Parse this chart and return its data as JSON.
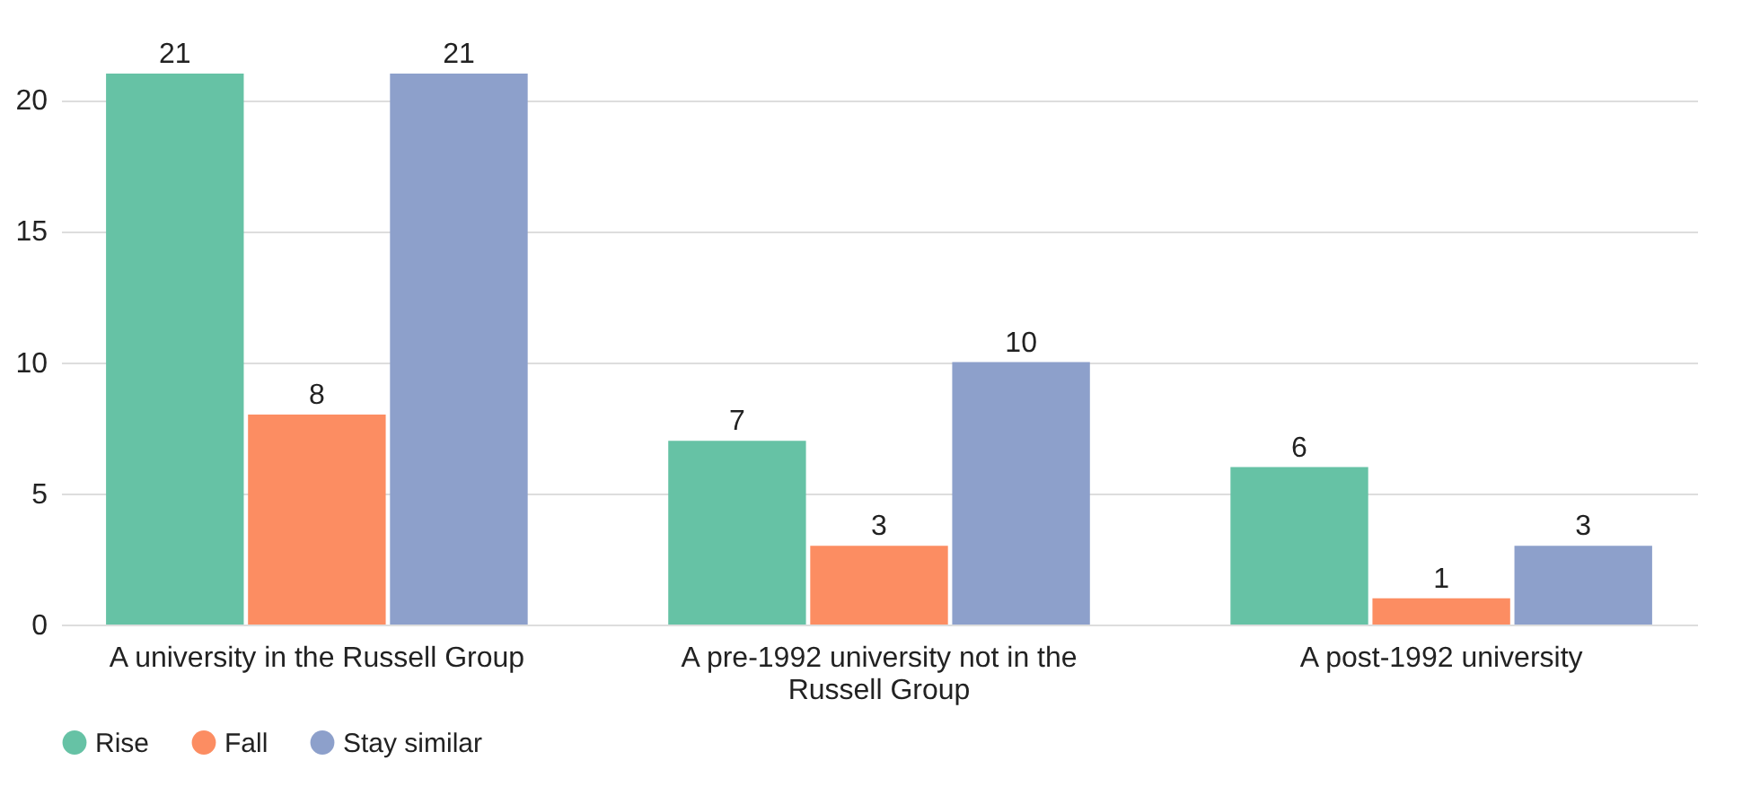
{
  "chart_data": {
    "type": "bar",
    "categories": [
      "A university in the Russell Group",
      "A pre-1992 university not in the Russell Group",
      "A post-1992 university"
    ],
    "series": [
      {
        "name": "Rise",
        "color": "#66c2a5",
        "values": [
          21,
          7,
          6
        ]
      },
      {
        "name": "Fall",
        "color": "#fc8d62",
        "values": [
          8,
          3,
          1
        ]
      },
      {
        "name": "Stay similar",
        "color": "#8da0cb",
        "values": [
          21,
          10,
          3
        ]
      }
    ],
    "ylim": [
      0,
      21
    ],
    "yticks": [
      0,
      5,
      10,
      15,
      20
    ],
    "grid": "y",
    "legend": "bottom left",
    "data_labels": true
  }
}
